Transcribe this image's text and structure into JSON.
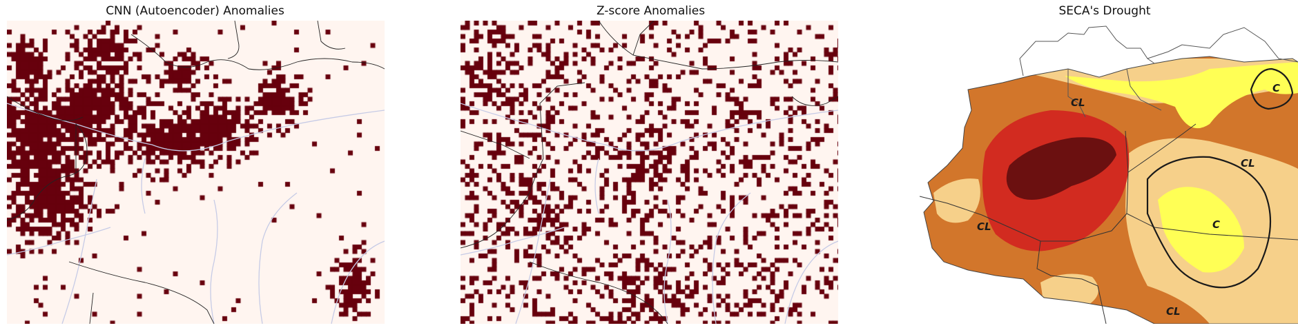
{
  "panels": [
    {
      "title": "CNN (Autoencoder) Anomalies",
      "cmap": [
        "#fff5f0",
        "#67000d"
      ]
    },
    {
      "title": "Z-score Anomalies",
      "cmap": [
        "#fff5f0",
        "#67000d"
      ]
    },
    {
      "title": "SECA's Drought",
      "zone_labels": [
        "CL",
        "CL",
        "CL",
        "CL",
        "C",
        "C"
      ]
    }
  ],
  "colors": {
    "river": "#c6cbe6",
    "border": "#222222",
    "drought_extreme": "#6b1010",
    "drought_severe": "#d22b20",
    "drought_moderate": "#d2762b",
    "drought_mild": "#f6d08a",
    "drought_weak": "#ffff55"
  }
}
